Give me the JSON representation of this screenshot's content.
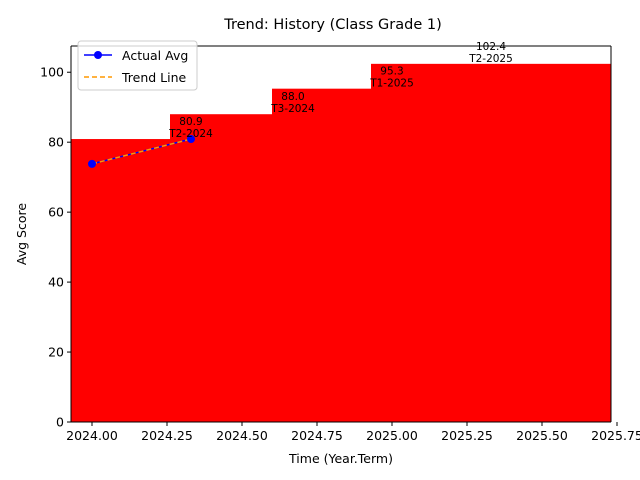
{
  "chart_data": {
    "type": "bar",
    "title": "Trend: History (Class Grade 1)",
    "xlabel": "Time (Year.Term)",
    "ylabel": "Avg Score",
    "xlim": [
      1923.93,
      2025.73
    ],
    "ylim": [
      0,
      107.5
    ],
    "x_ticks": [
      2024.0,
      2024.25,
      2024.5,
      2024.75,
      2025.0,
      2025.25,
      2025.5,
      2025.75
    ],
    "x_tick_labels": [
      "2024.00",
      "2024.25",
      "2024.50",
      "2024.75",
      "2025.00",
      "2025.25",
      "2025.50",
      "2025.75"
    ],
    "y_ticks": [
      0,
      20,
      40,
      60,
      80,
      100
    ],
    "y_tick_labels": [
      "0",
      "20",
      "40",
      "60",
      "80",
      "100"
    ],
    "bar_color": "#ff0000",
    "bars": [
      {
        "x_start": 1923.93,
        "x_end": 2025.73,
        "value": 80.9
      },
      {
        "x_start": 2024.26,
        "x_end": 2025.73,
        "value": 88.0
      },
      {
        "x_start": 2024.6,
        "x_end": 2025.73,
        "value": 95.3
      },
      {
        "x_start": 2024.93,
        "x_end": 2025.73,
        "value": 102.4
      }
    ],
    "data_labels": [
      {
        "x": 2024.33,
        "y": 80.9,
        "value_text": "80.9",
        "term_text": "T2-2024"
      },
      {
        "x": 2024.67,
        "y": 88.0,
        "value_text": "88.0",
        "term_text": "T3-2024"
      },
      {
        "x": 2025.0,
        "y": 95.3,
        "value_text": "95.3",
        "term_text": "T1-2025"
      },
      {
        "x": 2025.33,
        "y": 102.4,
        "value_text": "102.4",
        "term_text": "T2-2025"
      }
    ],
    "series": [
      {
        "name": "Actual Avg",
        "style": "line-marker",
        "color": "#0000ff",
        "x": [
          2024.0,
          2024.33
        ],
        "y": [
          73.8,
          80.9
        ]
      },
      {
        "name": "Trend Line",
        "style": "dashed",
        "color": "#ff9900",
        "x": [
          2024.0,
          2024.33
        ],
        "y": [
          73.8,
          80.9
        ]
      }
    ],
    "legend_position": "top-left",
    "grid": false
  }
}
